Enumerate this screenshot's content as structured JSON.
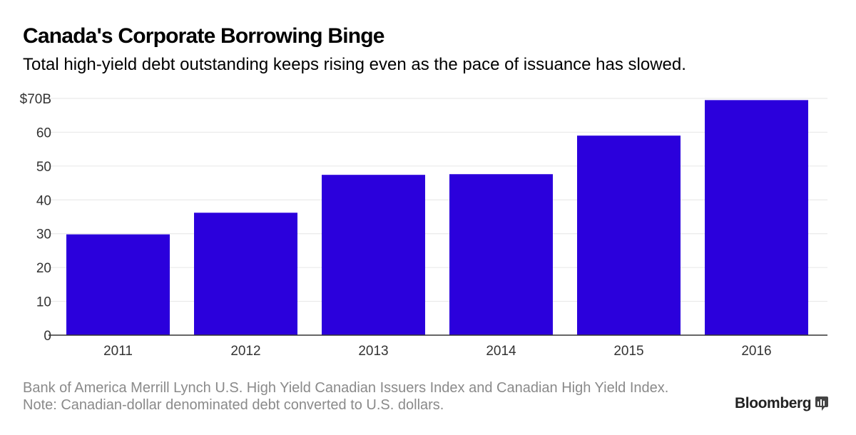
{
  "title": "Canada's Corporate Borrowing Binge",
  "subtitle": "Total high-yield debt outstanding keeps rising even as the pace of issuance has slowed.",
  "footer": {
    "source": "Bank of America Merrill Lynch U.S. High Yield Canadian Issuers Index and Canadian High Yield Index.",
    "note": "Note: Canadian-dollar denominated debt converted to U.S. dollars."
  },
  "brand": "Bloomberg",
  "colors": {
    "bar": "#2b00dc",
    "grid": "#e6e6e6",
    "axis": "#333333",
    "tick_text": "#333333"
  },
  "chart_data": {
    "type": "bar",
    "categories": [
      "2011",
      "2012",
      "2013",
      "2014",
      "2015",
      "2016"
    ],
    "values": [
      29.8,
      36.2,
      47.4,
      47.6,
      59.0,
      69.5
    ],
    "ylim": [
      0,
      70
    ],
    "yticks": [
      0,
      10,
      20,
      30,
      40,
      50,
      60,
      70
    ],
    "ytick_labels": [
      "0",
      "10",
      "20",
      "30",
      "40",
      "50",
      "60",
      "$70B"
    ],
    "grid": true,
    "xlabel": "",
    "ylabel": ""
  }
}
